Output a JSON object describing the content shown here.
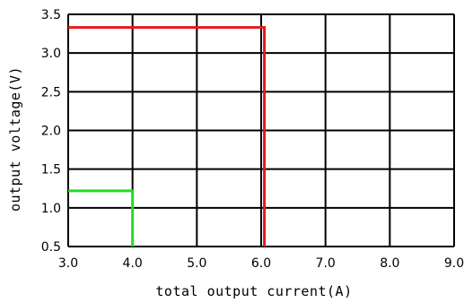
{
  "chart_data": {
    "type": "line",
    "title": "",
    "xlabel": "total output current(A)",
    "ylabel": "output voltage(V)",
    "xlim": [
      3.0,
      9.0
    ],
    "ylim": [
      0.5,
      3.5
    ],
    "xticks": [
      3.0,
      4.0,
      5.0,
      6.0,
      7.0,
      8.0,
      9.0
    ],
    "yticks": [
      0.5,
      1.0,
      1.5,
      2.0,
      2.5,
      3.0,
      3.5
    ],
    "xtick_labels": [
      "3.0",
      "4.0",
      "5.0",
      "6.0",
      "7.0",
      "8.0",
      "9.0"
    ],
    "ytick_labels": [
      "0.5",
      "1.0",
      "1.5",
      "2.0",
      "2.5",
      "3.0",
      "3.5"
    ],
    "grid": true,
    "series": [
      {
        "color": "#e8191c",
        "x": [
          3.0,
          6.05,
          6.05
        ],
        "y": [
          3.33,
          3.33,
          0.5
        ]
      },
      {
        "color": "#22dd22",
        "x": [
          3.0,
          4.0,
          4.0
        ],
        "y": [
          1.22,
          1.22,
          0.5
        ]
      }
    ]
  }
}
